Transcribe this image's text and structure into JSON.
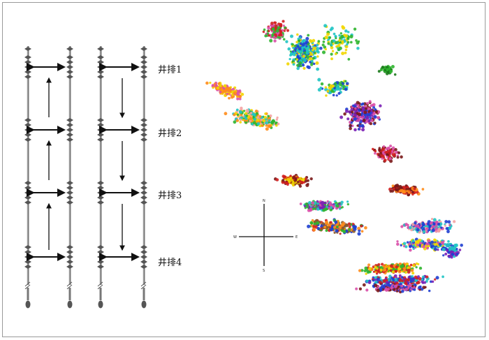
{
  "diagram": {
    "well_rows": [
      {
        "label": "井排1"
      },
      {
        "label": "井排2"
      },
      {
        "label": "井排3"
      },
      {
        "label": "井排4"
      }
    ],
    "left_arrow_direction": "up",
    "right_arrow_direction": "down",
    "compass": {
      "n": "N",
      "s": "S",
      "e": "E",
      "w": "W"
    },
    "event_colors": [
      "#d11f1f",
      "#ff8c1a",
      "#f2d600",
      "#2fb52f",
      "#1fc4c4",
      "#1f3fd1",
      "#7a1fb5",
      "#d94fa8",
      "#7a1a1a",
      "#8b5a2b",
      "#f4a3a3",
      "#1c7a1c"
    ]
  }
}
